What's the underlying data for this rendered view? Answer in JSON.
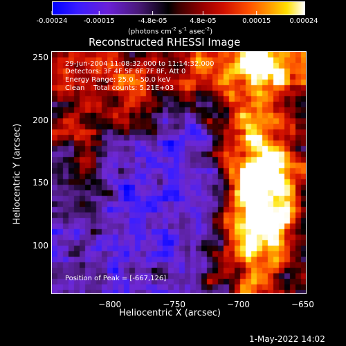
{
  "chart_data": {
    "type": "heatmap",
    "title": "Reconstructed RHESSI Image",
    "xlabel": "Heliocentric X (arcsec)",
    "ylabel": "Heliocentric Y (arcsec)",
    "xlim": [
      -845,
      -647
    ],
    "ylim": [
      62,
      255
    ],
    "xticks": [
      -800,
      -750,
      -700,
      -650
    ],
    "yticks": [
      100,
      150,
      200,
      250
    ],
    "colorbar": {
      "ticks": [
        "-0.00024",
        "-0.00015",
        "-4.8e-05",
        "4.8e-05",
        "0.00015",
        "0.00024"
      ],
      "tick_values": [
        -0.00024,
        -0.00015,
        -4.8e-05,
        4.8e-05,
        0.00015,
        0.00024
      ],
      "range": [
        -0.00024,
        0.00024
      ],
      "unit_label_main": "(photons cm",
      "unit_sup1": "-2",
      "unit_mid": " s",
      "unit_sup2": "-1",
      "unit_mid2": " asec",
      "unit_sup3": "-2",
      "unit_end": ")"
    },
    "annotations": {
      "time": "29-Jun-2004 11:08:32.000 to 11:14:32.000",
      "detectors": "Detectors: 3F 4F 5F 6F 7F 8F, Att 0",
      "energy": "Energy Range: 25.0 - 50.0 keV",
      "method": "Clean    Total counts: 5.21E+03",
      "peak": "Position of Peak = [-667,126]"
    },
    "peak_position": [
      -667,
      126
    ],
    "colormap": "blue-purple-black-red-orange-yellow-white"
  },
  "footer": {
    "date": "1-May-2022 14:02"
  }
}
